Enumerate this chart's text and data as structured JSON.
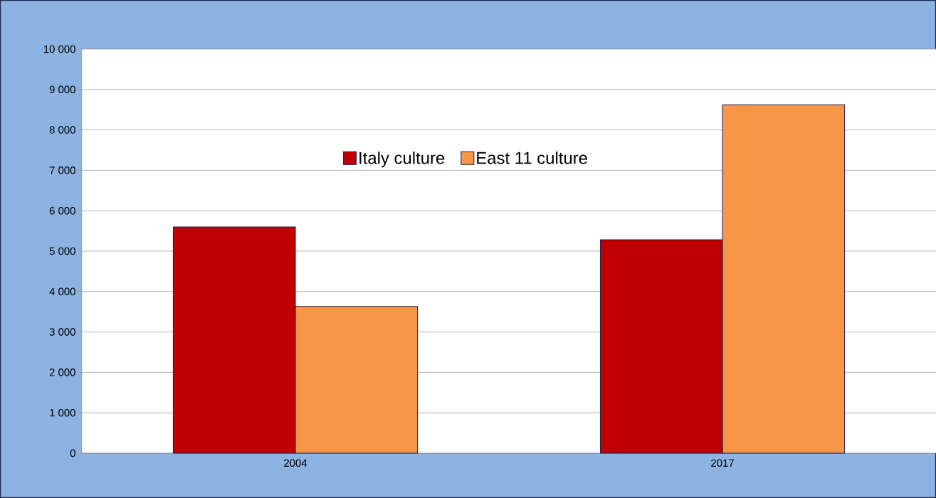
{
  "chart_data": {
    "type": "bar",
    "categories": [
      "2004",
      "2017"
    ],
    "series": [
      {
        "name": "Italy culture",
        "color": "#c00000",
        "values": [
          5600,
          5280
        ]
      },
      {
        "name": "East 11 culture",
        "color": "#f79646",
        "values": [
          3630,
          8620
        ]
      }
    ],
    "ylim": [
      0,
      10000
    ],
    "yticks": [
      0,
      {
        "value": 1000,
        "label": "1 000"
      },
      {
        "value": 2000,
        "label": "2 000"
      },
      {
        "value": 3000,
        "label": "3 000"
      },
      {
        "value": 4000,
        "label": "4 000"
      },
      {
        "value": 5000,
        "label": "5 000"
      },
      {
        "value": 6000,
        "label": "6 000"
      },
      {
        "value": 7000,
        "label": "7 000"
      },
      {
        "value": 8000,
        "label": "8 000"
      },
      {
        "value": 9000,
        "label": "9 000"
      },
      {
        "value": 10000,
        "label": "10 000"
      }
    ],
    "grid": "y",
    "legend": "top"
  }
}
